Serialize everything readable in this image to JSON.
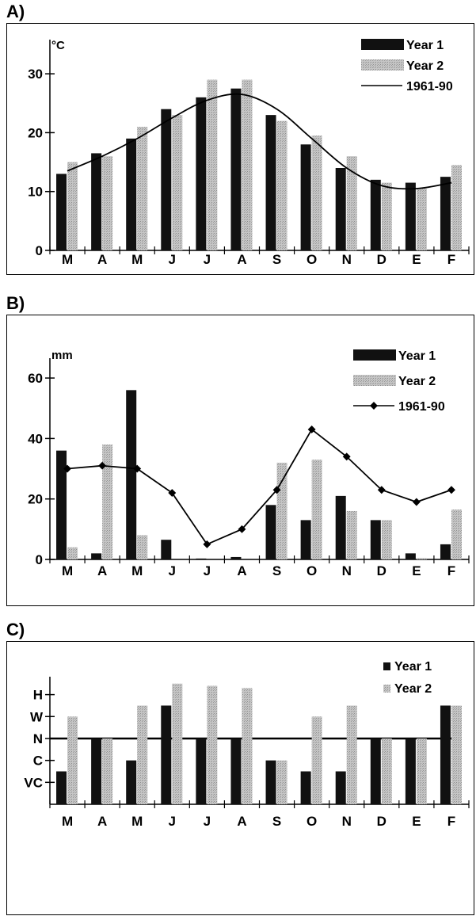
{
  "panels": [
    {
      "label": "A)",
      "unit": "°C",
      "legend": [
        "Year 1",
        "Year 2",
        "1961-90"
      ]
    },
    {
      "label": "B)",
      "unit": "mm",
      "legend": [
        "Year 1",
        "Year 2",
        "1961-90"
      ]
    },
    {
      "label": "C)",
      "unit": "",
      "legend": [
        "Year 1",
        "Year 2"
      ]
    }
  ],
  "colors": {
    "year1": "#111111",
    "year2": "#bdbdbd",
    "line": "#000000"
  },
  "chart_data": [
    {
      "type": "bar",
      "title": "",
      "ylabel": "°C",
      "categories": [
        "M",
        "A",
        "M",
        "J",
        "J",
        "A",
        "S",
        "O",
        "N",
        "D",
        "E",
        "F"
      ],
      "ylim": [
        0,
        35
      ],
      "yticks": [
        0,
        10,
        20,
        30
      ],
      "series": [
        {
          "name": "Year 1",
          "kind": "bar",
          "values": [
            13,
            16.5,
            19,
            24,
            26,
            27.5,
            23,
            18,
            14,
            12,
            11.5,
            12.5
          ]
        },
        {
          "name": "Year 2",
          "kind": "bar",
          "values": [
            15,
            16,
            21,
            23,
            29,
            29,
            22,
            19.5,
            16,
            11.5,
            10.5,
            14.5
          ]
        },
        {
          "name": "1961-90",
          "kind": "line",
          "values": [
            13.5,
            16,
            19,
            22.5,
            25.5,
            26.5,
            24,
            19,
            14,
            11,
            10.5,
            11.5
          ]
        }
      ],
      "legend_position": "top-right",
      "grid": false
    },
    {
      "type": "bar",
      "title": "",
      "ylabel": "mm",
      "categories": [
        "M",
        "A",
        "M",
        "J",
        "J",
        "A",
        "S",
        "O",
        "N",
        "D",
        "E",
        "F"
      ],
      "ylim": [
        0,
        65
      ],
      "yticks": [
        0,
        20,
        40,
        60
      ],
      "series": [
        {
          "name": "Year 1",
          "kind": "bar",
          "values": [
            36,
            2,
            56,
            6.5,
            0.3,
            0.8,
            18,
            13,
            21,
            13,
            2,
            5
          ]
        },
        {
          "name": "Year 2",
          "kind": "bar",
          "values": [
            4,
            38,
            8,
            0,
            0,
            0,
            32,
            33,
            16,
            13,
            0.5,
            16.5
          ]
        },
        {
          "name": "1961-90",
          "kind": "line",
          "values": [
            30,
            31,
            30,
            22,
            5,
            10,
            23,
            43,
            34,
            23,
            19,
            23
          ]
        }
      ],
      "legend_position": "top-right",
      "grid": false
    },
    {
      "type": "bar",
      "title": "",
      "ylabel": "",
      "categories": [
        "M",
        "A",
        "M",
        "J",
        "J",
        "A",
        "S",
        "O",
        "N",
        "D",
        "E",
        "F"
      ],
      "ylim": [
        0,
        5.6
      ],
      "yticks": [
        1,
        2,
        3,
        4,
        5
      ],
      "ytick_labels": [
        "VC",
        "C",
        "N",
        "W",
        "H"
      ],
      "reference_line": 3,
      "series": [
        {
          "name": "Year 1",
          "kind": "bar",
          "values": [
            1.5,
            3,
            2,
            4.5,
            3,
            3,
            2,
            1.5,
            1.5,
            3,
            3,
            4.5
          ]
        },
        {
          "name": "Year 2",
          "kind": "bar",
          "values": [
            4,
            3,
            4.5,
            5.5,
            5.4,
            5.3,
            2,
            4,
            4.5,
            3,
            3,
            4.5
          ]
        }
      ],
      "legend_position": "top-right",
      "grid": false
    }
  ]
}
